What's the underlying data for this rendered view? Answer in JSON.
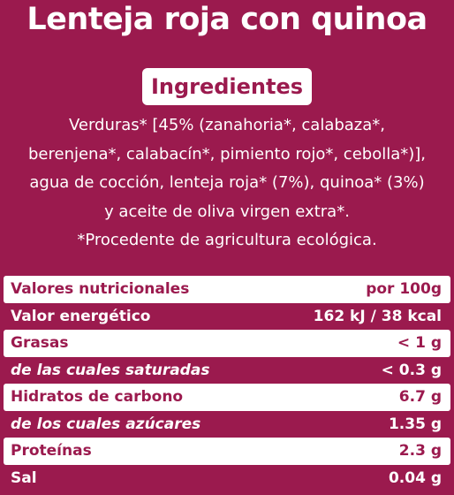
{
  "title": "Lenteja roja con quinoa",
  "ingredients": {
    "heading": "Ingredientes",
    "lines": [
      "Verduras* [45% (zanahoria*, calabaza*,",
      "berenjena*, calabacín*, pimiento rojo*, cebolla*)],",
      "agua de cocción, lenteja roja* (7%), quinoa* (3%)",
      "y aceite de oliva virgen extra*.",
      "*Procedente de agricultura ecológica."
    ]
  },
  "nutrition": {
    "rows": [
      {
        "label": "Valores nutricionales",
        "value": "por 100g",
        "italic": false
      },
      {
        "label": "Valor energético",
        "value": "162 kJ / 38 kcal",
        "italic": false
      },
      {
        "label": "Grasas",
        "value": "< 1 g",
        "italic": false
      },
      {
        "label": "de las cuales saturadas",
        "value": "< 0.3 g",
        "italic": true
      },
      {
        "label": "Hidratos de carbono",
        "value": "6.7 g",
        "italic": false
      },
      {
        "label": "de los cuales azúcares",
        "value": "1.35 g",
        "italic": true
      },
      {
        "label": "Proteínas",
        "value": "2.3 g",
        "italic": false
      },
      {
        "label": "Sal",
        "value": "0.04 g",
        "italic": false
      }
    ]
  },
  "colors": {
    "background": "#9b1a4e",
    "highlight": "#ffffff"
  }
}
